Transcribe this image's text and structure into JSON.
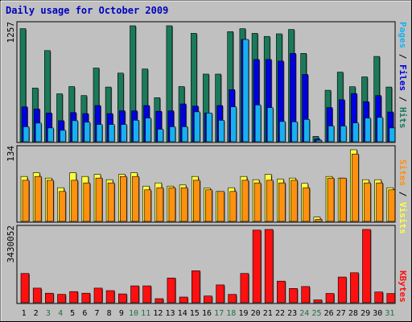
{
  "chart_data": {
    "type": "bar",
    "title": "Daily usage for October 2009",
    "colors": {
      "background": "#c0c0c0",
      "title": "#0000c0",
      "hits": "#1a7a5a",
      "files": "#0000e0",
      "pages": "#18b0f0",
      "visits": "#ffff40",
      "sites": "#ff9010",
      "kbytes": "#ff1010",
      "weekend_label": "#207040",
      "weekday_label": "#000000"
    },
    "categories": [
      "1",
      "2",
      "3",
      "4",
      "5",
      "6",
      "7",
      "8",
      "9",
      "10",
      "11",
      "12",
      "13",
      "14",
      "15",
      "16",
      "17",
      "18",
      "19",
      "20",
      "21",
      "22",
      "23",
      "24",
      "25",
      "26",
      "27",
      "28",
      "29",
      "30",
      "31"
    ],
    "weekend_days": [
      3,
      4,
      10,
      11,
      17,
      18,
      24,
      25,
      31
    ],
    "panels": [
      {
        "id": "top",
        "max_label": "1257",
        "ylim": [
          0,
          1257
        ],
        "legend": [
          {
            "text": "Pages",
            "color": "#18b0f0"
          },
          {
            "text": " / ",
            "color": "#000000"
          },
          {
            "text": "Files",
            "color": "#0000e0"
          },
          {
            "text": " / ",
            "color": "#000000"
          },
          {
            "text": "Hits",
            "color": "#1a7a5a"
          }
        ],
        "series": [
          {
            "name": "Hits",
            "values": [
              1226,
              581,
              988,
              519,
              598,
              500,
              799,
              593,
              744,
              1257,
              788,
              477,
              1257,
              598,
              1175,
              733,
              733,
              1193,
              1226,
              1175,
              1142,
              1170,
              1217,
              958,
              58,
              558,
              754,
              596,
              703,
              924,
              593
            ]
          },
          {
            "name": "Files",
            "values": [
              378,
              354,
              312,
              228,
              316,
              305,
              392,
              305,
              334,
              334,
              392,
              330,
              334,
              409,
              386,
              312,
              392,
              564,
              1109,
              891,
              891,
              875,
              958,
              729,
              29,
              370,
              455,
              522,
              434,
              500,
              322
            ]
          },
          {
            "name": "Pages",
            "values": [
              162,
              202,
              149,
              124,
              228,
              211,
              187,
              187,
              187,
              233,
              257,
              135,
              162,
              162,
              324,
              311,
              232,
              378,
              1109,
              398,
              369,
              219,
              216,
              241,
              17,
              170,
              170,
              203,
              257,
              264,
              149
            ]
          }
        ]
      },
      {
        "id": "mid",
        "max_label": "134",
        "ylim": [
          0,
          134
        ],
        "legend": [
          {
            "text": "Sites",
            "color": "#ff9010"
          },
          {
            "text": " / ",
            "color": "#000000"
          },
          {
            "text": "Visits",
            "color": "#ffff40"
          }
        ],
        "series": [
          {
            "name": "Visits",
            "values": [
              84,
              91,
              81,
              63,
              91,
              84,
              88,
              78,
              88,
              91,
              66,
              72,
              66,
              68,
              84,
              62,
              56,
              63,
              84,
              78,
              88,
              79,
              81,
              71,
              8,
              84,
              81,
              134,
              78,
              78,
              63
            ]
          },
          {
            "name": "Sites",
            "values": [
              77,
              84,
              77,
              56,
              77,
              72,
              81,
              72,
              84,
              84,
              59,
              63,
              63,
              63,
              77,
              59,
              56,
              56,
              77,
              72,
              77,
              72,
              77,
              63,
              4,
              81,
              81,
              126,
              72,
              72,
              59
            ]
          }
        ]
      },
      {
        "id": "bottom",
        "max_label": "3430052",
        "ylim": [
          0,
          3430052
        ],
        "legend": [
          {
            "text": "KBytes",
            "color": "#ff1010"
          }
        ],
        "series": [
          {
            "name": "KBytes",
            "values": [
              1367000,
              684000,
              446000,
              391000,
              520000,
              446000,
              684000,
              565000,
              412000,
              789000,
              789000,
              188000,
              1158000,
              264000,
              1498000,
              312000,
              834000,
              387000,
              1367000,
              3399000,
              3430052,
              1010000,
              668000,
              759000,
              132000,
              432000,
              1202000,
              1404000,
              3430052,
              500000,
              430000
            ]
          }
        ]
      }
    ]
  }
}
